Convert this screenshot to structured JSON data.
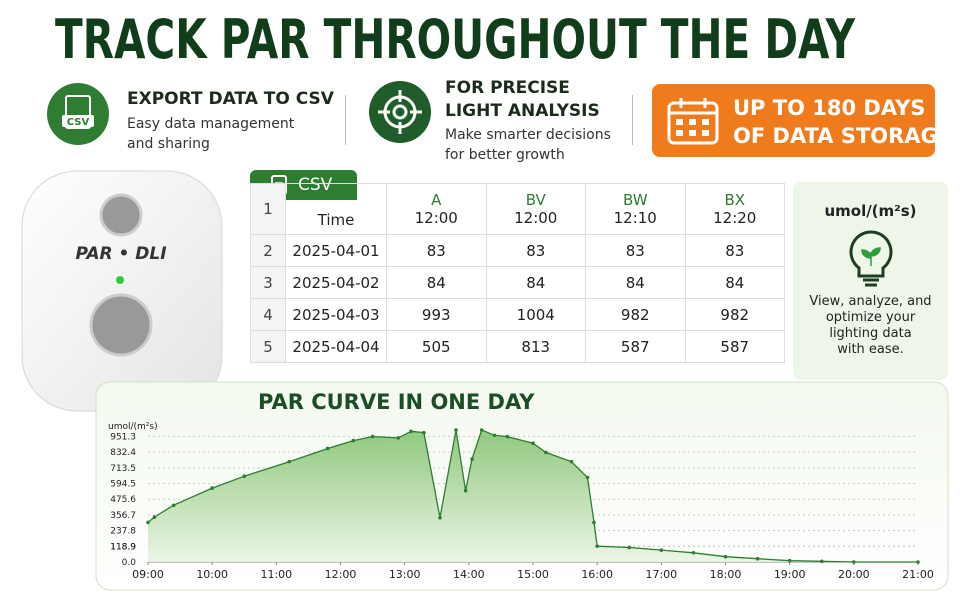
{
  "header": {
    "title": "TRACK PAR THROUGHOUT THE DAY"
  },
  "features": [
    {
      "icon_label": "CSV",
      "title": "EXPORT DATA TO CSV",
      "lines": [
        "Easy data management",
        "and sharing"
      ]
    },
    {
      "title_lines": [
        "FOR PRECISE",
        "LIGHT ANALYSIS"
      ],
      "lines": [
        "Make smarter decisions",
        "for better growth"
      ]
    },
    {
      "lines": [
        "UP TO 180 DAYS",
        "OF DATA STORAGE"
      ]
    }
  ],
  "device": {
    "label": "PAR • DLI"
  },
  "table": {
    "tab": "CSV",
    "header_row": "1",
    "columns": [
      {
        "name": "Time"
      },
      {
        "letter": "A",
        "time": "12:00"
      },
      {
        "letter": "BV",
        "time": "12:00"
      },
      {
        "letter": "BW",
        "time": "12:10"
      },
      {
        "letter": "BX",
        "time": "12:20"
      }
    ],
    "rows": [
      {
        "n": "2",
        "date": "2025-04-01",
        "values": [
          83,
          83,
          83,
          83
        ]
      },
      {
        "n": "3",
        "date": "2025-04-02",
        "values": [
          84,
          84,
          84,
          84
        ]
      },
      {
        "n": "4",
        "date": "2025-04-03",
        "values": [
          993,
          1004,
          982,
          982
        ]
      },
      {
        "n": "5",
        "date": "2025-04-04",
        "values": [
          505,
          813,
          587,
          587
        ]
      }
    ]
  },
  "side_panel": {
    "unit": "umol/(m²s)",
    "lines": [
      "View, analyze, and",
      "optimize your",
      "lighting data",
      "with ease."
    ]
  },
  "chart_data": {
    "type": "area",
    "title": "PAR CURVE IN ONE DAY",
    "y_label": "umol/(m²s)",
    "color": "#2e7d32",
    "grid": true,
    "x": [
      9.0,
      9.1,
      9.4,
      10.0,
      10.5,
      11.2,
      11.8,
      12.2,
      12.5,
      12.9,
      13.1,
      13.3,
      13.55,
      13.8,
      13.95,
      14.05,
      14.2,
      14.4,
      14.6,
      15.0,
      15.2,
      15.6,
      15.85,
      15.95,
      16.0,
      16.5,
      17.0,
      17.5,
      18.0,
      18.5,
      19.0,
      19.5,
      20.0,
      21.0
    ],
    "values": [
      300,
      340,
      430,
      560,
      650,
      760,
      860,
      920,
      950,
      940,
      990,
      980,
      335,
      1000,
      540,
      780,
      1000,
      960,
      950,
      900,
      830,
      760,
      640,
      300,
      120,
      110,
      90,
      70,
      40,
      25,
      10,
      5,
      0,
      0
    ],
    "xlim": [
      9,
      21
    ],
    "ylim": [
      0,
      1000
    ],
    "xticks": [
      {
        "value": 9,
        "label": "09:00"
      },
      {
        "value": 10,
        "label": "10:00"
      },
      {
        "value": 11,
        "label": "11:00"
      },
      {
        "value": 12,
        "label": "12:00"
      },
      {
        "value": 13,
        "label": "13:00"
      },
      {
        "value": 14,
        "label": "14:00"
      },
      {
        "value": 15,
        "label": "15:00"
      },
      {
        "value": 16,
        "label": "16:00"
      },
      {
        "value": 17,
        "label": "17:00"
      },
      {
        "value": 18,
        "label": "18:00"
      },
      {
        "value": 19,
        "label": "19:00"
      },
      {
        "value": 20,
        "label": "20:00"
      },
      {
        "value": 21,
        "label": "21:00"
      }
    ],
    "yticks": [
      {
        "value": 0,
        "label": "0.0"
      },
      118.9,
      118.9,
      237.8,
      356.7,
      475.6,
      594.5,
      {
        "value": 713.5,
        "label": "713.5"
      },
      832.4,
      951.3
    ]
  }
}
